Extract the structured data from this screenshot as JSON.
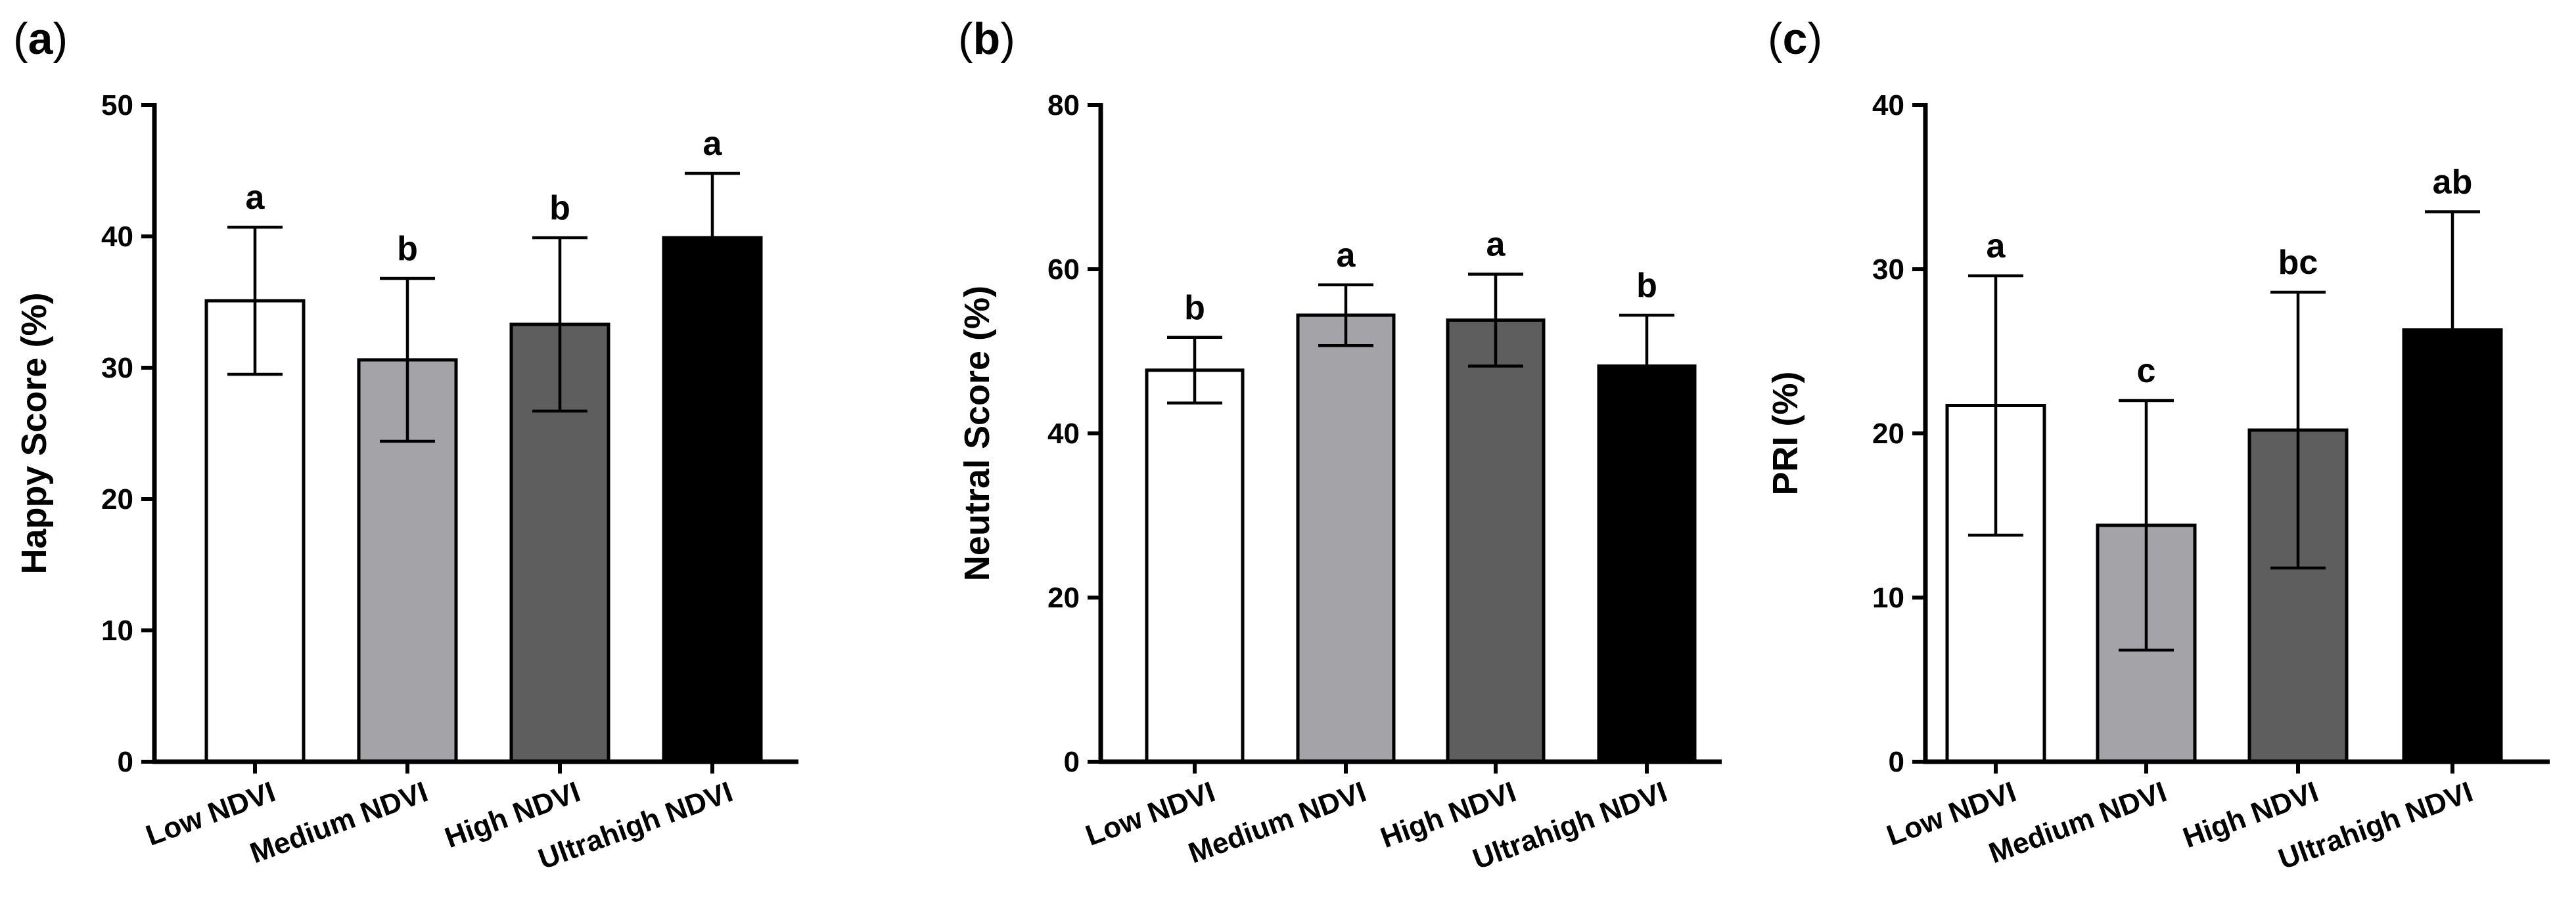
{
  "chart_data": [
    {
      "type": "bar",
      "panel_label": "a",
      "ylabel": "Happy Score (%)",
      "ylim": [
        0,
        50
      ],
      "yticks": [
        0,
        10,
        20,
        30,
        40,
        50
      ],
      "categories": [
        "Low NDVI",
        "Medium NDVI",
        "High NDVI",
        "Ultrahigh NDVI"
      ],
      "values": [
        35.1,
        30.6,
        33.3,
        39.9
      ],
      "errors": [
        5.6,
        6.2,
        6.6,
        4.9
      ],
      "significance": [
        "a",
        "b",
        "b",
        "a"
      ],
      "colors": [
        "#ffffff",
        "#a3a3a8",
        "#5e5e5e",
        "#000000"
      ]
    },
    {
      "type": "bar",
      "panel_label": "b",
      "ylabel": "Neutral Score (%)",
      "ylim": [
        0,
        80
      ],
      "yticks": [
        0,
        20,
        40,
        60,
        80
      ],
      "categories": [
        "Low NDVI",
        "Medium NDVI",
        "High NDVI",
        "Ultrahigh NDVI"
      ],
      "values": [
        47.7,
        54.4,
        53.8,
        48.2
      ],
      "errors": [
        4.0,
        3.7,
        5.6,
        6.2
      ],
      "significance": [
        "b",
        "a",
        "a",
        "b"
      ],
      "colors": [
        "#ffffff",
        "#a3a3a8",
        "#5e5e5e",
        "#000000"
      ]
    },
    {
      "type": "bar",
      "panel_label": "c",
      "ylabel": "PRI (%)",
      "ylim": [
        0,
        40
      ],
      "yticks": [
        0,
        10,
        20,
        30,
        40
      ],
      "categories": [
        "Low NDVI",
        "Medium NDVI",
        "High NDVI",
        "Ultrahigh NDVI"
      ],
      "values": [
        21.7,
        14.4,
        20.2,
        26.3
      ],
      "errors": [
        7.9,
        7.6,
        8.4,
        7.2
      ],
      "significance": [
        "a",
        "c",
        "bc",
        "ab"
      ],
      "colors": [
        "#ffffff",
        "#a3a3a8",
        "#5e5e5e",
        "#000000"
      ]
    }
  ]
}
